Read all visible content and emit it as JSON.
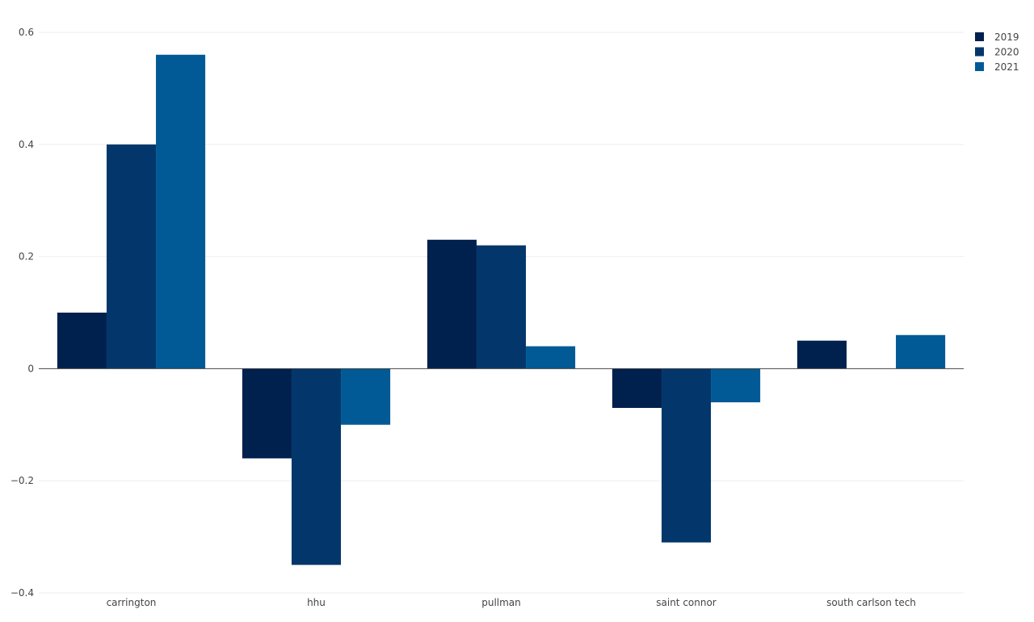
{
  "chart_data": {
    "type": "bar",
    "title": "",
    "xlabel": "",
    "ylabel": "",
    "categories": [
      "carrington",
      "hhu",
      "pullman",
      "saint connor",
      "south carlson tech"
    ],
    "series": [
      {
        "name": "2019",
        "color": "#00204e",
        "values": [
          0.1,
          -0.16,
          0.23,
          -0.07,
          0.05
        ]
      },
      {
        "name": "2020",
        "color": "#03376b",
        "values": [
          0.4,
          -0.35,
          0.22,
          -0.31,
          0.0
        ]
      },
      {
        "name": "2021",
        "color": "#015a95",
        "values": [
          0.56,
          -0.1,
          0.04,
          -0.06,
          0.06
        ]
      }
    ],
    "ylim": [
      -0.4,
      0.6
    ],
    "yticks": [
      -0.4,
      -0.2,
      0,
      0.2,
      0.4,
      0.6
    ],
    "ytick_labels": [
      "−0.4",
      "−0.2",
      "0",
      "0.2",
      "0.4",
      "0.6"
    ],
    "grid": true,
    "legend_position": "top-right"
  }
}
